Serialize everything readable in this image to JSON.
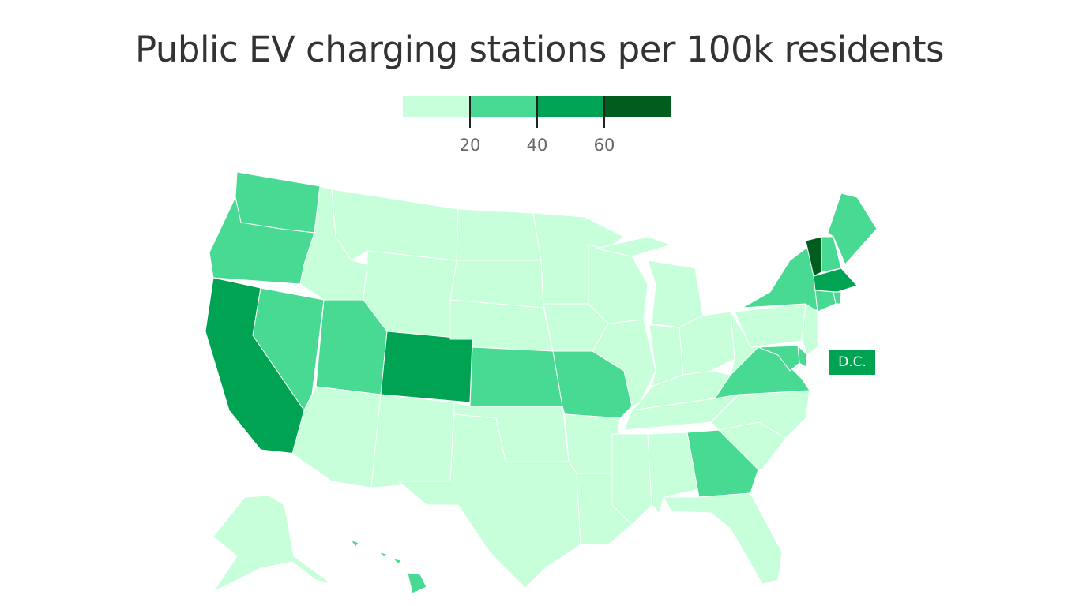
{
  "title": "Public EV charging stations per 100k residents",
  "legend": {
    "ticks": [
      "20",
      "40",
      "60"
    ],
    "colors": [
      "#c6ffd9",
      "#48d993",
      "#00a351",
      "#005d1e"
    ]
  },
  "dc_label": "D.C.",
  "chart_data": {
    "type": "choropleth",
    "title": "Public EV charging stations per 100k residents",
    "bins": [
      "<20",
      "20-40",
      "40-60",
      ">60"
    ],
    "thresholds": [
      20,
      40,
      60
    ],
    "states": {
      "WA": 1,
      "OR": 1,
      "CA": 2,
      "NV": 1,
      "ID": 0,
      "MT": 0,
      "WY": 0,
      "UT": 1,
      "CO": 2,
      "AZ": 0,
      "NM": 0,
      "ND": 0,
      "SD": 0,
      "NE": 0,
      "KS": 1,
      "OK": 0,
      "TX": 0,
      "MN": 0,
      "IA": 0,
      "MO": 1,
      "AR": 0,
      "LA": 0,
      "WI": 0,
      "IL": 0,
      "MI": 0,
      "IN": 0,
      "OH": 0,
      "KY": 0,
      "TN": 0,
      "MS": 0,
      "AL": 0,
      "GA": 1,
      "FL": 0,
      "SC": 0,
      "NC": 0,
      "VA": 1,
      "WV": 0,
      "PA": 0,
      "NY": 1,
      "VT": 3,
      "NH": 1,
      "ME": 1,
      "MA": 2,
      "RI": 1,
      "CT": 1,
      "NJ": 0,
      "DE": 1,
      "MD": 1,
      "DC": 2,
      "AK": 0,
      "HI": 1
    }
  }
}
